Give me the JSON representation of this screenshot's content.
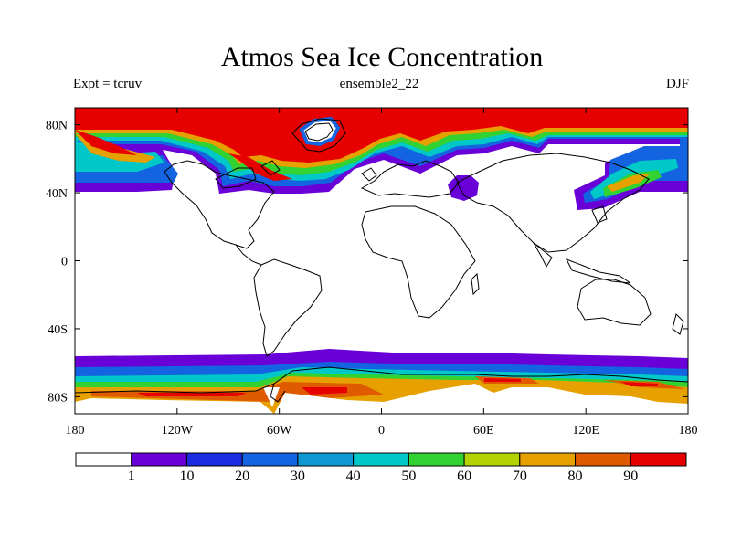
{
  "title": "Atmos Sea Ice Concentration",
  "subtitle_left": "Expt = tcruv",
  "subtitle_center": "ensemble2_22",
  "subtitle_right": "DJF",
  "axes": {
    "x_ticks": [
      {
        "value": -180,
        "label": "180"
      },
      {
        "value": -120,
        "label": "120W"
      },
      {
        "value": -60,
        "label": "60W"
      },
      {
        "value": 0,
        "label": "0"
      },
      {
        "value": 60,
        "label": "60E"
      },
      {
        "value": 120,
        "label": "120E"
      },
      {
        "value": 180,
        "label": "180"
      }
    ],
    "y_ticks": [
      {
        "value": 80,
        "label": "80N"
      },
      {
        "value": 40,
        "label": "40N"
      },
      {
        "value": 0,
        "label": "0"
      },
      {
        "value": -40,
        "label": "40S"
      },
      {
        "value": -80,
        "label": "80S"
      }
    ],
    "lon_range": [
      -180,
      180
    ],
    "lat_range": [
      -90,
      90
    ]
  },
  "colorbar": {
    "colors": [
      "#ffffff",
      "#6a00d8",
      "#1a2be0",
      "#1463e0",
      "#0e98d2",
      "#00c8c8",
      "#32d232",
      "#b4d200",
      "#e6a000",
      "#e05a00",
      "#e60000"
    ],
    "labels": [
      "1",
      "10",
      "20",
      "30",
      "40",
      "50",
      "60",
      "70",
      "80",
      "90"
    ]
  },
  "map_colors": {
    "red": "#e60000",
    "orange_red": "#e05a00",
    "orange": "#e6a000",
    "yellow_green": "#b4d200",
    "green": "#32d232",
    "cyan": "#00c8c8",
    "light_blue": "#0e98d2",
    "blue": "#1463e0",
    "deep_blue": "#1a2be0",
    "purple": "#6a00d8"
  }
}
